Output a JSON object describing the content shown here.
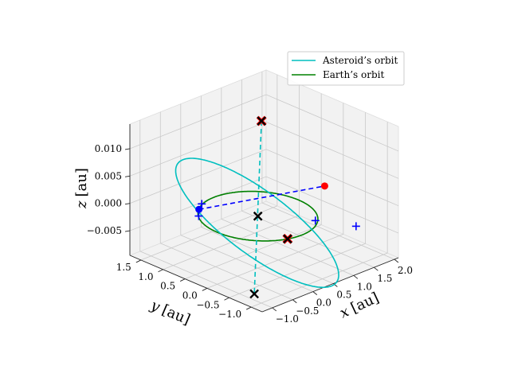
{
  "chart_data": {
    "type": "line",
    "projection": "3d",
    "title": "",
    "xlabel": "$x$ [au]",
    "ylabel": "$y$ [au]",
    "zlabel": "$z$ [au]",
    "xlabel_text": {
      "var": "x",
      "unit": "[au]"
    },
    "ylabel_text": {
      "var": "y",
      "unit": "[au]"
    },
    "zlabel_text": {
      "var": "z",
      "unit": "[au]"
    },
    "xlim": [
      -1.25,
      2.1
    ],
    "ylim": [
      -1.25,
      1.75
    ],
    "zlim": [
      -0.0095,
      0.0145
    ],
    "xticks": [
      "−1.0",
      "−0.5",
      "0.0",
      "0.5",
      "1.0",
      "1.5",
      "2.0"
    ],
    "yticks": [
      "−1.0",
      "−0.5",
      "0.0",
      "0.5",
      "1.0",
      "1.5"
    ],
    "zticks": [
      "−0.005",
      "0.000",
      "0.005",
      "0.010"
    ],
    "xtick_values": [
      -1.0,
      -0.5,
      0.0,
      0.5,
      1.0,
      1.5,
      2.0
    ],
    "ytick_values": [
      -1.0,
      -0.5,
      0.0,
      0.5,
      1.0,
      1.5
    ],
    "ztick_values": [
      -0.005,
      0.0,
      0.005,
      0.01
    ],
    "grid": true,
    "legend_position": "top-right",
    "series": [
      {
        "name": "Asteroid’s orbit",
        "color": "#00bfbf",
        "kind": "ellipse",
        "a": 1.45,
        "e": 0.35,
        "inclination_deg": 0.55,
        "node_longitude_deg": 40,
        "perihelion_arg_deg": 0,
        "node_line_color": "#00bfbf"
      },
      {
        "name": "Earth’s orbit",
        "color": "#008000",
        "kind": "circle",
        "radius": 1.0,
        "z": 0.0
      }
    ],
    "markers": [
      {
        "label": "sun",
        "x": 0.0,
        "y": 0.0,
        "z": 0.0,
        "style": "x",
        "color": "#000000"
      },
      {
        "label": "asteroid-node-upper",
        "x": 1.01,
        "y": 0.85,
        "z": 0.0,
        "zmark": 0.0115,
        "style": "x",
        "color": "#000000",
        "edge_color": "#ff0000"
      },
      {
        "label": "asteroid-node-lower",
        "x": -1.01,
        "y": -0.85,
        "z": 0.0,
        "zmark": -0.0083,
        "style": "x",
        "color": "#000000"
      },
      {
        "label": "earth-point-red-x",
        "x": -0.3,
        "y": -0.95,
        "z": 0.0,
        "style": "x",
        "color": "#000000",
        "edge_color": "#ff0000"
      },
      {
        "label": "earth-dot",
        "x": -0.55,
        "y": 0.83,
        "z": 0.0,
        "style": "o",
        "color": "#0000ff"
      },
      {
        "label": "asteroid-dot",
        "x": 1.75,
        "y": 0.1,
        "z": 0.0,
        "style": "o",
        "color": "#ff0000"
      }
    ],
    "plus_markers": [
      {
        "x": -0.35,
        "y": 0.95,
        "z": 0.0
      },
      {
        "x": -0.75,
        "y": 0.65,
        "z": 0.0
      },
      {
        "x": 0.6,
        "y": -0.75,
        "z": 0.0
      },
      {
        "x": 0.95,
        "y": -1.35,
        "z": 0.0
      }
    ],
    "dashed_lines": [
      {
        "from": "earth-dot",
        "to": "asteroid-dot",
        "color": "#0000ff"
      },
      {
        "from": "asteroid-node-upper",
        "to": "asteroid-node-lower",
        "color": "#00bfbf"
      }
    ],
    "view": {
      "elev_deg": 20,
      "azim_deg": -145
    }
  }
}
